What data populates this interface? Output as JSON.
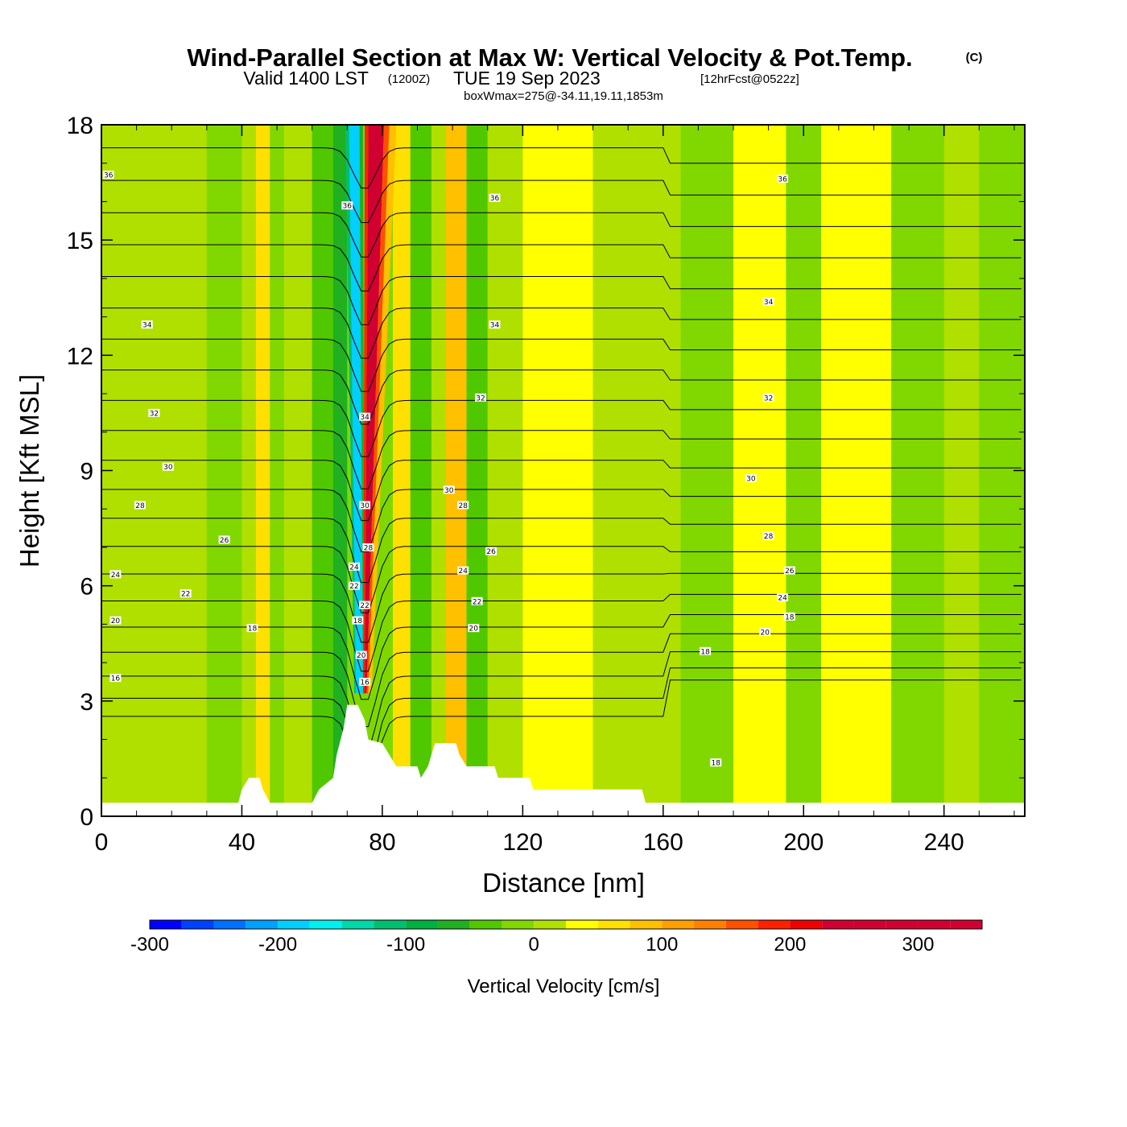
{
  "header": {
    "title": "Wind-Parallel Section at Max W: Vertical Velocity & Pot.Temp.",
    "copyright": "(C)",
    "valid_prefix": "Valid 1400 LST",
    "valid_utc": "(1200Z)",
    "valid_date": "TUE 19 Sep 2023",
    "forecast": "[12hrFcst@0522z]",
    "box_info": "boxWmax=275@-34.11,19.11,1853m"
  },
  "colors": {
    "background_w": "#7ed800",
    "terrain": "#ffffff",
    "contour": "#000000",
    "scale": [
      "#0000ff",
      "#0040ff",
      "#0070ff",
      "#00a0ff",
      "#00cfff",
      "#00f0f0",
      "#00d8a8",
      "#00c070",
      "#00b040",
      "#20b020",
      "#50c800",
      "#80d800",
      "#b0e000",
      "#ffff00",
      "#ffe000",
      "#ffc000",
      "#ffa000",
      "#ff8000",
      "#ff5000",
      "#ff2000",
      "#f00000",
      "#d00030"
    ]
  },
  "chart_data": {
    "type": "contour-section",
    "title": "Wind-Parallel Section at Max W: Vertical Velocity & Pot.Temp.",
    "xlabel": "Distance [nm]",
    "ylabel": "Height [Kft MSL]",
    "xlim": [
      0,
      263
    ],
    "ylim": [
      0,
      18
    ],
    "xticks": [
      0,
      40,
      80,
      120,
      160,
      200,
      240
    ],
    "xtick_labels": [
      "0",
      "40",
      "80",
      "120",
      "160",
      "200",
      "240"
    ],
    "yticks": [
      0,
      3,
      6,
      9,
      12,
      15,
      18
    ],
    "ytick_labels": [
      "0",
      "3",
      "6",
      "9",
      "12",
      "15",
      "18"
    ],
    "shading_variable": "Vertical Velocity [cm/s]",
    "colorbar": {
      "label": "Vertical Velocity [cm/s]",
      "min": -300,
      "max": 350,
      "step": 25,
      "tick_values": [
        -300,
        -200,
        -100,
        0,
        100,
        200,
        300
      ],
      "tick_labels": [
        "-300",
        "-200",
        "-100",
        "0",
        "100",
        "200",
        "300"
      ]
    },
    "contour_variable": "Potential Temperature [C]",
    "contour_levels": [
      16,
      17,
      18,
      19,
      20,
      21,
      22,
      23,
      24,
      25,
      26,
      27,
      28,
      29,
      30,
      31,
      32,
      33,
      34,
      35,
      36
    ],
    "contour_labels": [
      {
        "text": "36",
        "x": 2,
        "y": 16.7
      },
      {
        "text": "36",
        "x": 70,
        "y": 15.9
      },
      {
        "text": "36",
        "x": 112,
        "y": 16.1
      },
      {
        "text": "36",
        "x": 194,
        "y": 16.6
      },
      {
        "text": "34",
        "x": 13,
        "y": 12.8
      },
      {
        "text": "34",
        "x": 112,
        "y": 12.8
      },
      {
        "text": "34",
        "x": 190,
        "y": 13.4
      },
      {
        "text": "34",
        "x": 75,
        "y": 10.4
      },
      {
        "text": "32",
        "x": 15,
        "y": 10.5
      },
      {
        "text": "32",
        "x": 108,
        "y": 10.9
      },
      {
        "text": "32",
        "x": 190,
        "y": 10.9
      },
      {
        "text": "30",
        "x": 19,
        "y": 9.1
      },
      {
        "text": "30",
        "x": 99,
        "y": 8.5
      },
      {
        "text": "30",
        "x": 185,
        "y": 8.8
      },
      {
        "text": "30",
        "x": 75,
        "y": 8.1
      },
      {
        "text": "28",
        "x": 11,
        "y": 8.1
      },
      {
        "text": "28",
        "x": 103,
        "y": 8.1
      },
      {
        "text": "28",
        "x": 190,
        "y": 7.3
      },
      {
        "text": "28",
        "x": 76,
        "y": 7.0
      },
      {
        "text": "26",
        "x": 35,
        "y": 7.2
      },
      {
        "text": "26",
        "x": 111,
        "y": 6.9
      },
      {
        "text": "26",
        "x": 196,
        "y": 6.4
      },
      {
        "text": "24",
        "x": 4,
        "y": 6.3
      },
      {
        "text": "24",
        "x": 103,
        "y": 6.4
      },
      {
        "text": "24",
        "x": 194,
        "y": 5.7
      },
      {
        "text": "24",
        "x": 72,
        "y": 6.5
      },
      {
        "text": "22",
        "x": 24,
        "y": 5.8
      },
      {
        "text": "22",
        "x": 107,
        "y": 5.6
      },
      {
        "text": "22",
        "x": 72,
        "y": 6.0
      },
      {
        "text": "22",
        "x": 75,
        "y": 5.5
      },
      {
        "text": "20",
        "x": 4,
        "y": 5.1
      },
      {
        "text": "20",
        "x": 106,
        "y": 4.9
      },
      {
        "text": "20",
        "x": 189,
        "y": 4.8
      },
      {
        "text": "20",
        "x": 74,
        "y": 4.2
      },
      {
        "text": "18",
        "x": 43,
        "y": 4.9
      },
      {
        "text": "18",
        "x": 172,
        "y": 4.3
      },
      {
        "text": "18",
        "x": 196,
        "y": 5.2
      },
      {
        "text": "18",
        "x": 73,
        "y": 5.1
      },
      {
        "text": "18",
        "x": 175,
        "y": 1.4
      },
      {
        "text": "16",
        "x": 4,
        "y": 3.6
      },
      {
        "text": "16",
        "x": 75,
        "y": 3.5
      }
    ],
    "w_bands": [
      {
        "x": 40,
        "value": 25,
        "kind": "mean"
      },
      {
        "x": 47,
        "value": 75,
        "kind": "mean"
      },
      {
        "x": 72,
        "value": -180,
        "kind": "updraft core descending"
      },
      {
        "x": 78,
        "value": 300,
        "kind": "updraft core"
      },
      {
        "x": 83,
        "value": 100,
        "kind": "mean"
      },
      {
        "x": 95,
        "value": -50,
        "kind": "mean"
      },
      {
        "x": 100,
        "value": 100,
        "kind": "mean"
      },
      {
        "x": 120,
        "value": 50,
        "kind": "mean"
      },
      {
        "x": 190,
        "value": -25,
        "kind": "mean"
      },
      {
        "x": 215,
        "value": 25,
        "kind": "mean"
      },
      {
        "x": 245,
        "value": -25,
        "kind": "mean"
      }
    ],
    "terrain_profile": [
      {
        "x": 0,
        "y": 0.35
      },
      {
        "x": 39,
        "y": 0.35
      },
      {
        "x": 40,
        "y": 0.7
      },
      {
        "x": 42,
        "y": 1.0
      },
      {
        "x": 45,
        "y": 1.0
      },
      {
        "x": 46,
        "y": 0.7
      },
      {
        "x": 48,
        "y": 0.35
      },
      {
        "x": 60,
        "y": 0.35
      },
      {
        "x": 62,
        "y": 0.7
      },
      {
        "x": 66,
        "y": 1.0
      },
      {
        "x": 67,
        "y": 1.6
      },
      {
        "x": 69,
        "y": 2.3
      },
      {
        "x": 70,
        "y": 2.9
      },
      {
        "x": 73,
        "y": 2.9
      },
      {
        "x": 75,
        "y": 2.5
      },
      {
        "x": 76,
        "y": 2.0
      },
      {
        "x": 80,
        "y": 1.9
      },
      {
        "x": 82,
        "y": 1.6
      },
      {
        "x": 84,
        "y": 1.3
      },
      {
        "x": 90,
        "y": 1.3
      },
      {
        "x": 91,
        "y": 1.0
      },
      {
        "x": 93,
        "y": 1.3
      },
      {
        "x": 95,
        "y": 1.9
      },
      {
        "x": 101,
        "y": 1.9
      },
      {
        "x": 102,
        "y": 1.6
      },
      {
        "x": 104,
        "y": 1.3
      },
      {
        "x": 112,
        "y": 1.3
      },
      {
        "x": 113,
        "y": 1.0
      },
      {
        "x": 122,
        "y": 1.0
      },
      {
        "x": 123,
        "y": 0.7
      },
      {
        "x": 154,
        "y": 0.7
      },
      {
        "x": 155,
        "y": 0.35
      },
      {
        "x": 263,
        "y": 0.35
      }
    ]
  }
}
